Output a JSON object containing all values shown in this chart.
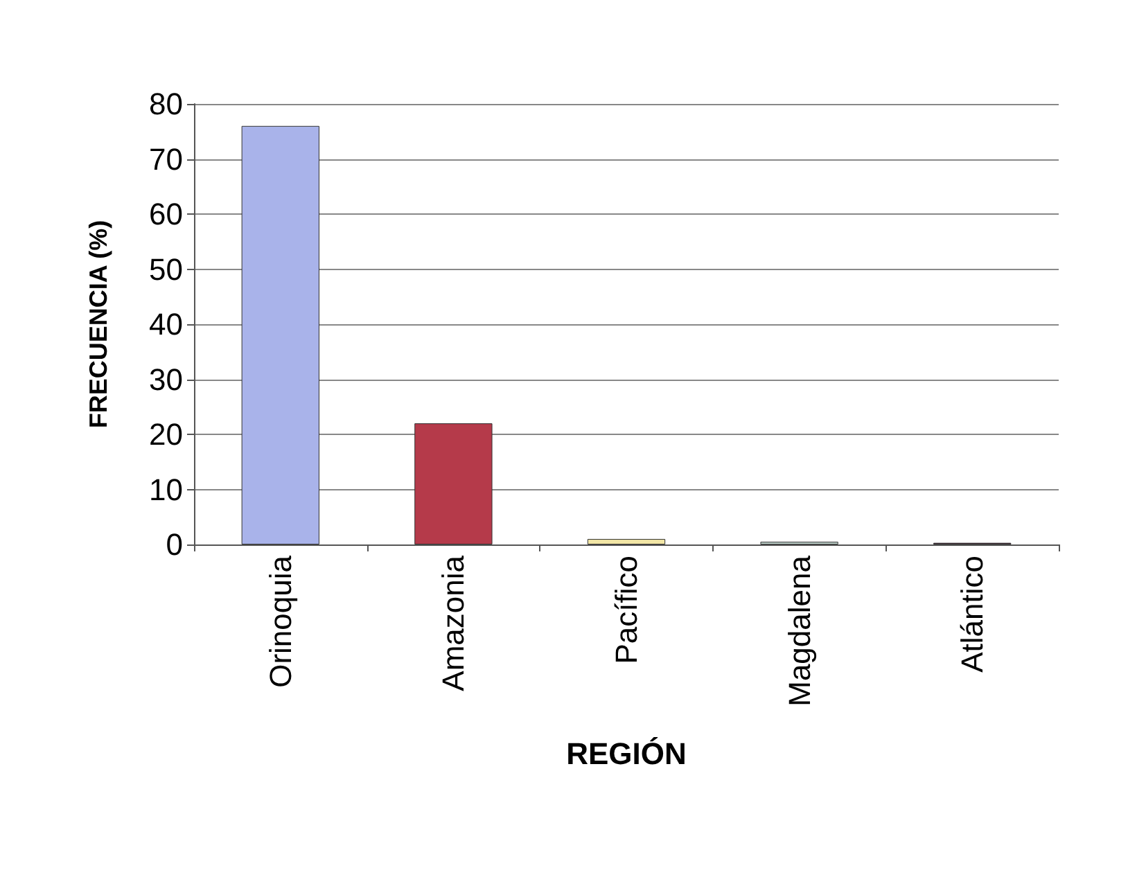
{
  "chart_data": {
    "type": "bar",
    "xlabel": "REGIÓN",
    "ylabel": "FRECUENCIA (%)",
    "categories": [
      "Orinoquia",
      "Amazonia",
      "Pacífico",
      "Magdalena",
      "Atlántico"
    ],
    "values": [
      76,
      22,
      1,
      0.5,
      0.3
    ],
    "colors": [
      "#a9b3ea",
      "#b53a4a",
      "#f2e6a6",
      "#c3d6cf",
      "#4a1a33"
    ],
    "ylim": [
      0,
      80
    ],
    "yticks": [
      0,
      10,
      20,
      30,
      40,
      50,
      60,
      70,
      80
    ],
    "grid": "y"
  }
}
